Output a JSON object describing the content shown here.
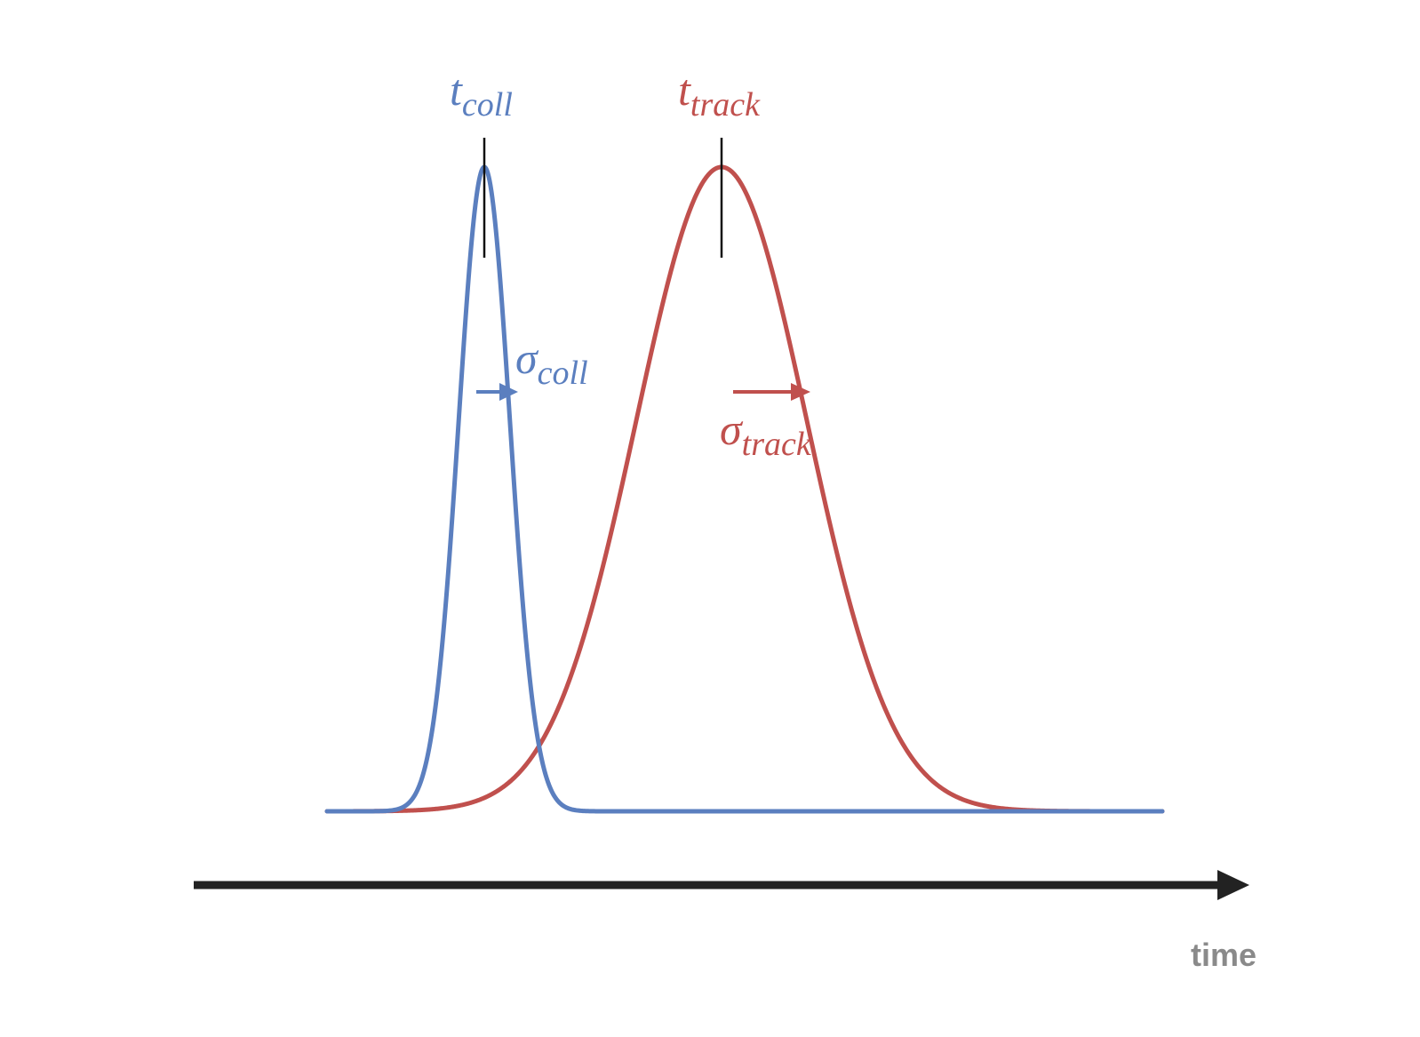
{
  "colors": {
    "coll": "#5b7fbf",
    "track": "#c0504d",
    "axis": "#222222",
    "marker": "#111111",
    "axis_label": "#8a8a8a"
  },
  "labels": {
    "t_coll": {
      "main": "t",
      "sub": "coll"
    },
    "t_track": {
      "main": "t",
      "sub": "track"
    },
    "sigma_coll": {
      "main": "σ",
      "sub": "coll"
    },
    "sigma_track": {
      "main": "σ",
      "sub": "track"
    },
    "axis": "time"
  },
  "curves": {
    "coll": {
      "shape": "gaussian",
      "sigma_to_track_ratio": 0.3
    },
    "track": {
      "shape": "gaussian"
    }
  }
}
